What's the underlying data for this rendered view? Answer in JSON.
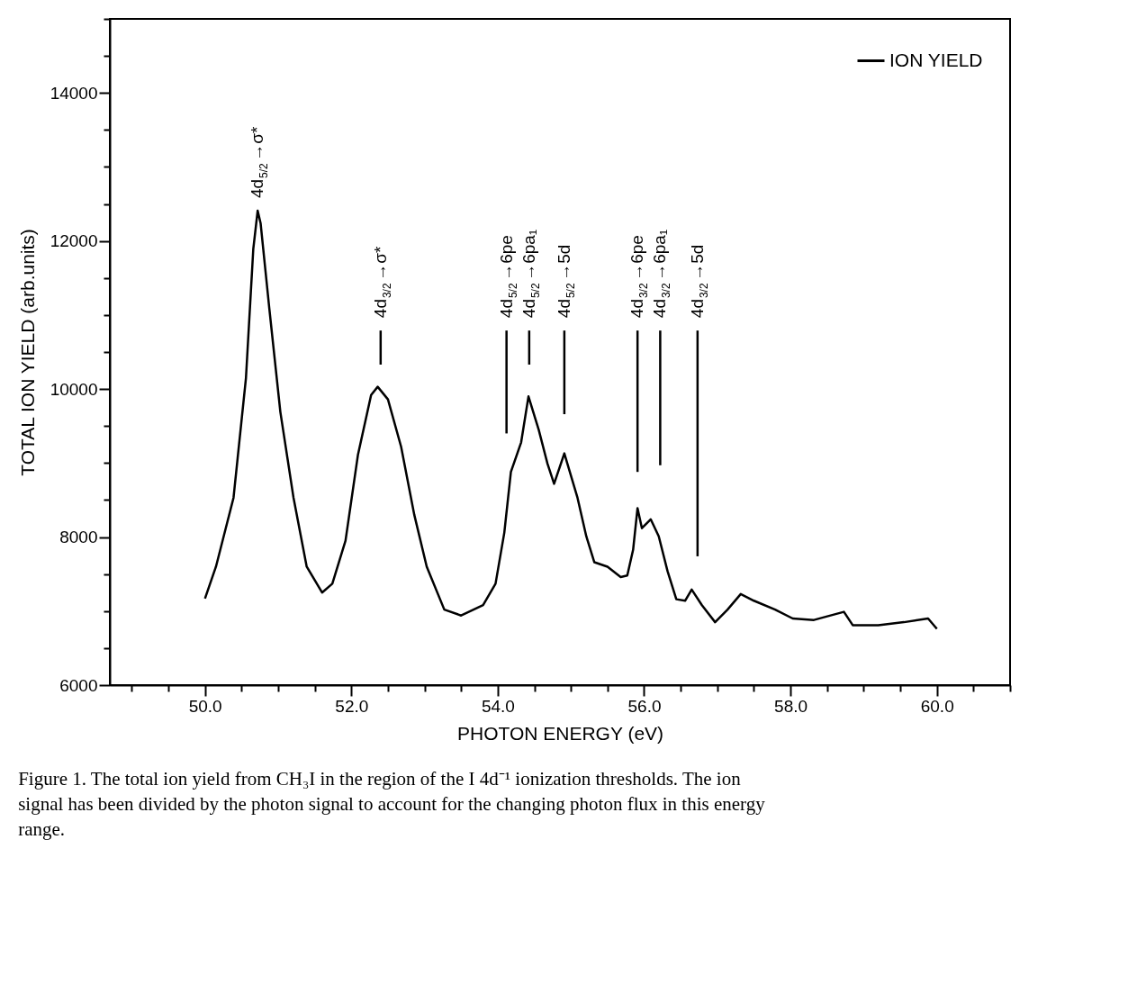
{
  "chart_data": {
    "type": "line",
    "xlabel": "PHOTON ENERGY (eV)",
    "ylabel": "TOTAL ION YIELD (arb.units)",
    "xlim": [
      48.7,
      61.0
    ],
    "ylim": [
      6000,
      15000
    ],
    "xticks": [
      {
        "value": 49.0,
        "label": null
      },
      {
        "value": 49.5,
        "label": null
      },
      {
        "value": 50,
        "label": "50.0"
      },
      {
        "value": 50.5,
        "label": null
      },
      {
        "value": 51,
        "label": null
      },
      {
        "value": 51.5,
        "label": null
      },
      {
        "value": 52,
        "label": "52.0"
      },
      {
        "value": 52.5,
        "label": null
      },
      {
        "value": 53,
        "label": null
      },
      {
        "value": 53.5,
        "label": null
      },
      {
        "value": 54,
        "label": "54.0"
      },
      {
        "value": 54.5,
        "label": null
      },
      {
        "value": 55,
        "label": null
      },
      {
        "value": 55.5,
        "label": null
      },
      {
        "value": 56,
        "label": "56.0"
      },
      {
        "value": 56.5,
        "label": null
      },
      {
        "value": 57,
        "label": null
      },
      {
        "value": 57.5,
        "label": null
      },
      {
        "value": 58,
        "label": "58.0"
      },
      {
        "value": 58.5,
        "label": null
      },
      {
        "value": 59,
        "label": null
      },
      {
        "value": 59.5,
        "label": null
      },
      {
        "value": 60,
        "label": "60.0"
      },
      {
        "value": 60.5,
        "label": null
      },
      {
        "value": 61,
        "label": null
      }
    ],
    "yticks": [
      6000,
      {
        "value": 6500,
        "label": null
      },
      {
        "value": 7000,
        "label": null
      },
      {
        "value": 7500,
        "label": null
      },
      8000,
      {
        "value": 8500,
        "label": null
      },
      {
        "value": 9000,
        "label": null
      },
      {
        "value": 9500,
        "label": null
      },
      10000,
      {
        "value": 10500,
        "label": null
      },
      {
        "value": 11000,
        "label": null
      },
      {
        "value": 11500,
        "label": null
      },
      12000,
      {
        "value": 12500,
        "label": null
      },
      {
        "value": 13000,
        "label": null
      },
      {
        "value": 13500,
        "label": null
      },
      14000,
      {
        "value": 14500,
        "label": null
      },
      {
        "value": 15000,
        "label": null
      }
    ],
    "grid": false,
    "legend": "top right",
    "marker": "none",
    "line_style": "solid",
    "series": [
      {
        "name": "ION YIELD",
        "color": "#000000",
        "x": [
          50.0,
          50.15,
          50.39,
          50.56,
          50.66,
          50.72,
          50.76,
          50.88,
          51.03,
          51.21,
          51.39,
          51.6,
          51.74,
          51.92,
          52.09,
          52.27,
          52.36,
          52.5,
          52.68,
          52.86,
          53.03,
          53.27,
          53.5,
          53.8,
          53.97,
          54.09,
          54.18,
          54.32,
          54.42,
          54.56,
          54.68,
          54.77,
          54.91,
          55.09,
          55.21,
          55.32,
          55.5,
          55.68,
          55.77,
          55.85,
          55.91,
          55.97,
          56.09,
          56.2,
          56.32,
          56.44,
          56.56,
          56.65,
          56.79,
          56.97,
          57.14,
          57.32,
          57.5,
          57.79,
          58.03,
          58.32,
          58.73,
          58.85,
          59.2,
          59.55,
          59.88,
          60.0
        ],
        "values": [
          7170,
          7600,
          8530,
          10150,
          11890,
          12410,
          12240,
          11080,
          9690,
          8530,
          7600,
          7250,
          7370,
          7950,
          9110,
          9920,
          10030,
          9860,
          9220,
          8300,
          7600,
          7020,
          6940,
          7080,
          7370,
          8060,
          8880,
          9280,
          9900,
          9450,
          8990,
          8720,
          9130,
          8530,
          8010,
          7660,
          7600,
          7460,
          7480,
          7830,
          8390,
          8120,
          8240,
          8010,
          7540,
          7160,
          7140,
          7290,
          7080,
          6850,
          7020,
          7230,
          7140,
          7020,
          6900,
          6880,
          6990,
          6810,
          6810,
          6850,
          6900,
          6760
        ]
      },
      {
        "color": "#000000",
        "x": [
          52.4,
          52.4
        ],
        "values": [
          10790,
          10330
        ]
      },
      {
        "color": "#000000",
        "x": [
          54.12,
          54.12
        ],
        "values": [
          10790,
          9400
        ]
      },
      {
        "color": "#000000",
        "x": [
          54.43,
          54.43
        ],
        "values": [
          10790,
          10330
        ]
      },
      {
        "color": "#000000",
        "x": [
          54.91,
          54.91
        ],
        "values": [
          10790,
          9660
        ]
      },
      {
        "color": "#000000",
        "x": [
          55.91,
          55.91
        ],
        "values": [
          10790,
          8880
        ]
      },
      {
        "color": "#000000",
        "x": [
          56.22,
          56.22
        ],
        "values": [
          10790,
          8970
        ]
      },
      {
        "color": "#000000",
        "x": [
          56.73,
          56.73
        ],
        "values": [
          10790,
          7740
        ]
      }
    ],
    "annotations": [
      {
        "text": "4d$_{5/2}$→σ*",
        "x": 50.72,
        "y": 12410
      },
      {
        "text": "4d$_{3/2}$→σ*",
        "x": 52.4,
        "y": 10790
      },
      {
        "text": "4d$_{5/2}$→6pe",
        "x": 54.12,
        "y": 10790
      },
      {
        "text": "4d$_{5/2}$→6pa₁",
        "x": 54.43,
        "y": 10790
      },
      {
        "text": "4d$_{5/2}$→5d",
        "x": 54.91,
        "y": 10790
      },
      {
        "text": "4d$_{3/2}$→6pe",
        "x": 55.91,
        "y": 10790
      },
      {
        "text": "4d$_{3/2}$→6pa₁",
        "x": 56.22,
        "y": 10790
      },
      {
        "text": "4d$_{3/2}$→5d",
        "x": 56.73,
        "y": 10790
      },
      "Figure 1. The total ion yield from CH₃I in the region of the I 4d⁻¹ ionization thresholds. The ion signal has been divided by the photon signal to account for the changing photon flux in this energy range."
    ]
  }
}
